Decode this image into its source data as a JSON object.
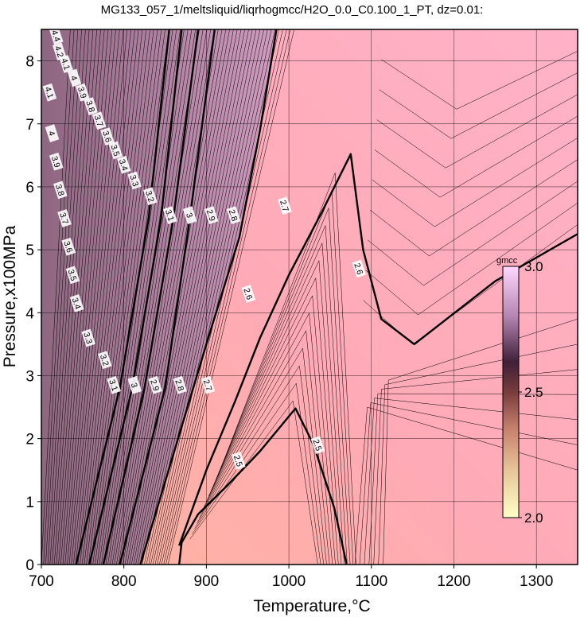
{
  "chart_data": {
    "type": "contour",
    "title": "MG133_057_1/meltsliquid/liqrhogmcc/H2O_0.0_C0.100_1_PT, dz=0.01:",
    "xlabel": "Temperature,°C",
    "ylabel": "Pressure,x100MPa",
    "xlim": [
      700,
      1350
    ],
    "ylim": [
      0,
      8.5
    ],
    "xticks": [
      "700",
      "800",
      "900",
      "1000",
      "1100",
      "1200",
      "1300"
    ],
    "yticks": [
      "0",
      "1",
      "2",
      "3",
      "4",
      "5",
      "6",
      "7",
      "8"
    ],
    "grid": true,
    "contour_interval": 0.01,
    "colorbar": {
      "unit": "gmcc",
      "min": 2.0,
      "max": 3.0,
      "tick_labels": [
        "2.0",
        "2.5",
        "3.0"
      ],
      "colors": [
        "#ffffc8",
        "#e8c89a",
        "#c8826e",
        "#783c3c",
        "#402038",
        "#b484b0",
        "#ffd8ff"
      ]
    },
    "bold_contours": [
      {
        "label": "2.5",
        "points": [
          [
            867,
            0
          ],
          [
            870,
            0.35
          ],
          [
            890,
            0.8
          ],
          [
            925,
            1.25
          ],
          [
            965,
            1.8
          ],
          [
            1008,
            2.48
          ],
          [
            1030,
            1.9
          ],
          [
            1055,
            0.9
          ],
          [
            1070,
            0
          ]
        ]
      },
      {
        "label": "2.6",
        "points": [
          [
            867,
            0.3
          ],
          [
            900,
            1.5
          ],
          [
            935,
            2.6
          ],
          [
            965,
            3.6
          ],
          [
            1000,
            4.6
          ],
          [
            1040,
            5.6
          ],
          [
            1075,
            6.52
          ],
          [
            1090,
            5.0
          ],
          [
            1112,
            3.9
          ],
          [
            1152,
            3.5
          ],
          [
            1250,
            4.5
          ],
          [
            1350,
            5.25
          ]
        ]
      },
      {
        "label": "2.7",
        "points": [
          [
            820,
            0
          ],
          [
            900,
            3.5
          ],
          [
            940,
            5.2
          ],
          [
            965,
            6.9
          ],
          [
            985,
            8.5
          ]
        ]
      },
      {
        "label": "2.8",
        "points": [
          [
            795,
            0
          ],
          [
            850,
            2.8
          ],
          [
            880,
            5.5
          ],
          [
            910,
            8.5
          ]
        ]
      },
      {
        "label": "2.9",
        "points": [
          [
            775,
            0
          ],
          [
            825,
            2.8
          ],
          [
            860,
            5.5
          ],
          [
            890,
            8.5
          ]
        ]
      },
      {
        "label": "3.0",
        "points": [
          [
            758,
            0
          ],
          [
            810,
            2.8
          ],
          [
            845,
            5.5
          ],
          [
            870,
            8.5
          ]
        ]
      },
      {
        "label": "3.1",
        "points": [
          [
            742,
            0
          ],
          [
            795,
            2.8
          ],
          [
            830,
            5.5
          ],
          [
            855,
            8.5
          ]
        ]
      }
    ],
    "contour_labels": [
      {
        "text": "2.5",
        "x": 1035,
        "y": 1.9
      },
      {
        "text": "2.5",
        "x": 939,
        "y": 1.65
      },
      {
        "text": "2.6",
        "x": 1085,
        "y": 4.7
      },
      {
        "text": "2.6",
        "x": 951,
        "y": 4.3
      },
      {
        "text": "2.7",
        "x": 995,
        "y": 5.7
      },
      {
        "text": "2.7",
        "x": 902,
        "y": 2.85
      },
      {
        "text": "2.8",
        "x": 933,
        "y": 5.55
      },
      {
        "text": "2.8",
        "x": 868,
        "y": 2.85
      },
      {
        "text": "2.9",
        "x": 906,
        "y": 5.55
      },
      {
        "text": "2.9",
        "x": 838,
        "y": 2.85
      },
      {
        "text": "3",
        "x": 880,
        "y": 5.55
      },
      {
        "text": "3",
        "x": 813,
        "y": 2.85
      },
      {
        "text": "3.1",
        "x": 856,
        "y": 5.55
      },
      {
        "text": "3.1",
        "x": 788,
        "y": 2.85
      },
      {
        "text": "3.2",
        "x": 832,
        "y": 5.85
      },
      {
        "text": "3.2",
        "x": 777,
        "y": 3.25
      },
      {
        "text": "3.3",
        "x": 813,
        "y": 6.1
      },
      {
        "text": "3.3",
        "x": 757,
        "y": 3.6
      },
      {
        "text": "3.4",
        "x": 800,
        "y": 6.35
      },
      {
        "text": "3.4",
        "x": 743,
        "y": 4.15
      },
      {
        "text": "3.5",
        "x": 790,
        "y": 6.58
      },
      {
        "text": "3.5",
        "x": 738,
        "y": 4.6
      },
      {
        "text": "3.6",
        "x": 780,
        "y": 6.8
      },
      {
        "text": "3.6",
        "x": 733,
        "y": 5.05
      },
      {
        "text": "3.7",
        "x": 770,
        "y": 7.05
      },
      {
        "text": "3.7",
        "x": 728,
        "y": 5.5
      },
      {
        "text": "3.8",
        "x": 760,
        "y": 7.28
      },
      {
        "text": "3.8",
        "x": 723,
        "y": 5.95
      },
      {
        "text": "3.9",
        "x": 750,
        "y": 7.5
      },
      {
        "text": "3.9",
        "x": 718,
        "y": 6.4
      },
      {
        "text": "4",
        "x": 740,
        "y": 7.73
      },
      {
        "text": "4",
        "x": 713,
        "y": 6.85
      },
      {
        "text": "4.1",
        "x": 730,
        "y": 7.95
      },
      {
        "text": "4.1",
        "x": 710,
        "y": 7.5
      },
      {
        "text": "4.2",
        "x": 722,
        "y": 8.15
      },
      {
        "text": "4.4",
        "x": 718,
        "y": 8.4
      }
    ]
  }
}
